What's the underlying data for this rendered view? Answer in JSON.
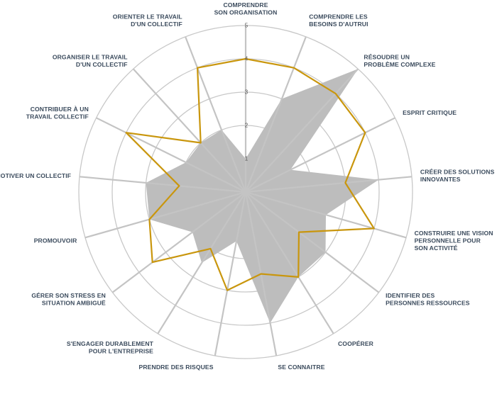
{
  "chart_data": {
    "type": "radar",
    "rlim": [
      0,
      5
    ],
    "ticks": [
      "1",
      "2",
      "3",
      "4",
      "5"
    ],
    "categories": [
      "COMPRENDRE|SON ORGANISATION",
      "COMPRENDRE LES|BESOINS D'AUTRUI",
      "RÉSOUDRE UN|PROBLÈME COMPLEXE",
      "ESPRIT CRITIQUE",
      "CRÉER DES SOLUTIONS|INNOVANTES",
      "CONSTRUIRE UNE VISION|PERSONNELLE POUR|SON ACTIVITÉ",
      "IDENTIFIER DES|PERSONNES RESSOURCES",
      "COOPÉRER",
      "SE CONNAITRE",
      "PRENDRE DES RISQUES",
      "S'ENGAGER DURABLEMENT|POUR L'ENTREPRISE",
      "GÉRER SON STRESS EN|SITUATION AMBIGUË",
      "PROMOUVOIR",
      "MOTIVER UN COLLECTIF",
      "CONTRIBUER À UN|TRAVAIL COLLECTIF",
      "ORGANISER LE TRAVAIL|D'UN COLLECTIF",
      "ORIENTER LE TRAVAIL|D'UN COLLECTIF"
    ],
    "series": [
      {
        "values": [
          1,
          3,
          5,
          1.5,
          4,
          2.5,
          3,
          3,
          4,
          1.5,
          2.5,
          2,
          3,
          3,
          2,
          2,
          2
        ],
        "color": "#bdbdbd",
        "style": "filled"
      },
      {
        "values": [
          4,
          4,
          4,
          4,
          3,
          4,
          2,
          3,
          2.5,
          3,
          2,
          3.5,
          3,
          2,
          4,
          2,
          4
        ],
        "color": "#c9960d",
        "style": "line"
      }
    ]
  }
}
